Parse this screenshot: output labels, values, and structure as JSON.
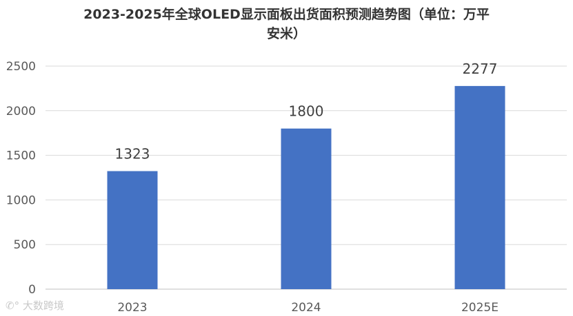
{
  "chart_data": {
    "type": "bar",
    "title_lines": [
      "2023-2025年全球OLED显示面板出货面积预测趋势图（单位：万平",
      "安米）"
    ],
    "categories": [
      "2023",
      "2024",
      "2025E"
    ],
    "values": [
      1323,
      1800,
      2277
    ],
    "data_labels": [
      "1323",
      "1800",
      "2277"
    ],
    "yticks": [
      0,
      500,
      1000,
      1500,
      2000,
      2500
    ],
    "ylim": [
      0,
      2500
    ],
    "grid": true,
    "legend": "none",
    "bar_color": "#4472C4",
    "grid_color": "#D9D9D9"
  },
  "watermark": "大数跨境"
}
